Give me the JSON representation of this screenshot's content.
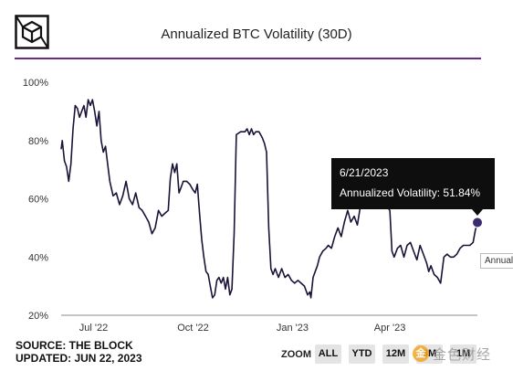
{
  "title": "Annualized BTC Volatility (30D)",
  "colors": {
    "line": "#1b1238",
    "accent_rule": "#6a2c8c",
    "tooltip_bg": "#0e0e0e",
    "marker": "#3a2a6e"
  },
  "chart_data": {
    "type": "line",
    "title": "Annualized BTC Volatility (30D)",
    "xlabel": "",
    "ylabel": "",
    "x_range": [
      "2022-06-01",
      "2023-06-21"
    ],
    "ylim": [
      20,
      100
    ],
    "y_ticks": [
      20,
      40,
      60,
      80,
      100
    ],
    "y_tick_labels": [
      "20%",
      "40%",
      "60%",
      "80%",
      "100%"
    ],
    "x_ticks": [
      "2022-07-01",
      "2022-10-01",
      "2023-01-01",
      "2023-04-01"
    ],
    "x_tick_labels": [
      "Jul '22",
      "Oct '22",
      "Jan '23",
      "Apr '23"
    ],
    "grid": false,
    "series": [
      {
        "points": [
          [
            "2022-06-01",
            77
          ],
          [
            "2022-06-02",
            80
          ],
          [
            "2022-06-04",
            73
          ],
          [
            "2022-06-06",
            71
          ],
          [
            "2022-06-08",
            66
          ],
          [
            "2022-06-10",
            72
          ],
          [
            "2022-06-12",
            84
          ],
          [
            "2022-06-14",
            92
          ],
          [
            "2022-06-16",
            91
          ],
          [
            "2022-06-18",
            88
          ],
          [
            "2022-06-20",
            90
          ],
          [
            "2022-06-22",
            92
          ],
          [
            "2022-06-24",
            88
          ],
          [
            "2022-06-26",
            94
          ],
          [
            "2022-06-28",
            92
          ],
          [
            "2022-06-30",
            94
          ],
          [
            "2022-07-02",
            90
          ],
          [
            "2022-07-04",
            85
          ],
          [
            "2022-07-06",
            90
          ],
          [
            "2022-07-08",
            80
          ],
          [
            "2022-07-10",
            76
          ],
          [
            "2022-07-12",
            78
          ],
          [
            "2022-07-14",
            72
          ],
          [
            "2022-07-16",
            66
          ],
          [
            "2022-07-19",
            61
          ],
          [
            "2022-07-22",
            62
          ],
          [
            "2022-07-25",
            58
          ],
          [
            "2022-07-28",
            61
          ],
          [
            "2022-07-31",
            66
          ],
          [
            "2022-08-03",
            60
          ],
          [
            "2022-08-06",
            58
          ],
          [
            "2022-08-09",
            62
          ],
          [
            "2022-08-12",
            57
          ],
          [
            "2022-08-15",
            56
          ],
          [
            "2022-08-18",
            54
          ],
          [
            "2022-08-21",
            52
          ],
          [
            "2022-08-24",
            48
          ],
          [
            "2022-08-27",
            50
          ],
          [
            "2022-08-30",
            56
          ],
          [
            "2022-09-02",
            54
          ],
          [
            "2022-09-05",
            55
          ],
          [
            "2022-09-08",
            56
          ],
          [
            "2022-09-10",
            67
          ],
          [
            "2022-09-12",
            72
          ],
          [
            "2022-09-14",
            69
          ],
          [
            "2022-09-16",
            72
          ],
          [
            "2022-09-18",
            62
          ],
          [
            "2022-09-20",
            64
          ],
          [
            "2022-09-22",
            66
          ],
          [
            "2022-09-25",
            66
          ],
          [
            "2022-09-28",
            65
          ],
          [
            "2022-10-01",
            63
          ],
          [
            "2022-10-03",
            62
          ],
          [
            "2022-10-05",
            65
          ],
          [
            "2022-10-07",
            55
          ],
          [
            "2022-10-09",
            46
          ],
          [
            "2022-10-11",
            40
          ],
          [
            "2022-10-13",
            35
          ],
          [
            "2022-10-15",
            34
          ],
          [
            "2022-10-17",
            30
          ],
          [
            "2022-10-19",
            26
          ],
          [
            "2022-10-21",
            27
          ],
          [
            "2022-10-23",
            32
          ],
          [
            "2022-10-25",
            33
          ],
          [
            "2022-10-27",
            31
          ],
          [
            "2022-10-29",
            33
          ],
          [
            "2022-10-31",
            29
          ],
          [
            "2022-11-02",
            33
          ],
          [
            "2022-11-04",
            27
          ],
          [
            "2022-11-06",
            29
          ],
          [
            "2022-11-08",
            48
          ],
          [
            "2022-11-10",
            82
          ],
          [
            "2022-11-14",
            83
          ],
          [
            "2022-11-18",
            83
          ],
          [
            "2022-11-20",
            84
          ],
          [
            "2022-11-22",
            82
          ],
          [
            "2022-11-24",
            84
          ],
          [
            "2022-11-26",
            82
          ],
          [
            "2022-11-28",
            83
          ],
          [
            "2022-12-01",
            83
          ],
          [
            "2022-12-04",
            81
          ],
          [
            "2022-12-06",
            79
          ],
          [
            "2022-12-08",
            76
          ],
          [
            "2022-12-10",
            50
          ],
          [
            "2022-12-12",
            36
          ],
          [
            "2022-12-14",
            34
          ],
          [
            "2022-12-16",
            36
          ],
          [
            "2022-12-19",
            33
          ],
          [
            "2022-12-22",
            36
          ],
          [
            "2022-12-25",
            33
          ],
          [
            "2022-12-28",
            34
          ],
          [
            "2022-12-31",
            32
          ],
          [
            "2023-01-03",
            31
          ],
          [
            "2023-01-06",
            32
          ],
          [
            "2023-01-09",
            31
          ],
          [
            "2023-01-12",
            30
          ],
          [
            "2023-01-15",
            27
          ],
          [
            "2023-01-17",
            28
          ],
          [
            "2023-01-18",
            26
          ],
          [
            "2023-01-20",
            33
          ],
          [
            "2023-01-22",
            35
          ],
          [
            "2023-01-24",
            37
          ],
          [
            "2023-01-26",
            40
          ],
          [
            "2023-01-29",
            42
          ],
          [
            "2023-02-01",
            43
          ],
          [
            "2023-02-03",
            44
          ],
          [
            "2023-02-06",
            43
          ],
          [
            "2023-02-09",
            47
          ],
          [
            "2023-02-12",
            50
          ],
          [
            "2023-02-15",
            47
          ],
          [
            "2023-02-18",
            52
          ],
          [
            "2023-02-21",
            56
          ],
          [
            "2023-02-24",
            52
          ],
          [
            "2023-02-27",
            54
          ],
          [
            "2023-03-02",
            51
          ],
          [
            "2023-03-05",
            58
          ],
          [
            "2023-03-08",
            60
          ],
          [
            "2023-03-10",
            63
          ],
          [
            "2023-03-12",
            62
          ],
          [
            "2023-03-14",
            59
          ],
          [
            "2023-03-16",
            62
          ],
          [
            "2023-03-20",
            61
          ],
          [
            "2023-03-24",
            60
          ],
          [
            "2023-03-28",
            58
          ],
          [
            "2023-04-01",
            56
          ],
          [
            "2023-04-03",
            42
          ],
          [
            "2023-04-05",
            40
          ],
          [
            "2023-04-08",
            43
          ],
          [
            "2023-04-11",
            44
          ],
          [
            "2023-04-14",
            40
          ],
          [
            "2023-04-17",
            44
          ],
          [
            "2023-04-20",
            45
          ],
          [
            "2023-04-23",
            42
          ],
          [
            "2023-04-26",
            39
          ],
          [
            "2023-04-29",
            44
          ],
          [
            "2023-05-02",
            41
          ],
          [
            "2023-05-05",
            38
          ],
          [
            "2023-05-07",
            35
          ],
          [
            "2023-05-09",
            37
          ],
          [
            "2023-05-12",
            34
          ],
          [
            "2023-05-15",
            33
          ],
          [
            "2023-05-18",
            31
          ],
          [
            "2023-05-21",
            40
          ],
          [
            "2023-05-24",
            41
          ],
          [
            "2023-05-27",
            40
          ],
          [
            "2023-05-30",
            40
          ],
          [
            "2023-06-02",
            41
          ],
          [
            "2023-06-05",
            43
          ],
          [
            "2023-06-08",
            44
          ],
          [
            "2023-06-11",
            44
          ],
          [
            "2023-06-14",
            44
          ],
          [
            "2023-06-17",
            45
          ],
          [
            "2023-06-19",
            49
          ],
          [
            "2023-06-21",
            51.84
          ]
        ]
      }
    ],
    "hover_point": {
      "x": "2023-06-21",
      "y": 51.84
    }
  },
  "tooltip": {
    "date": "6/21/2023",
    "text": "Annualized Volatility: 51.84%"
  },
  "side_label": "Annualized Volatility",
  "source": {
    "line1": "SOURCE: THE BLOCK",
    "line2": "UPDATED: JUN 22, 2023"
  },
  "zoom": {
    "label": "ZOOM",
    "buttons": [
      "ALL",
      "YTD",
      "12M",
      "3M",
      "1M"
    ]
  },
  "watermark": {
    "coin": "金",
    "text": "金色财经"
  }
}
